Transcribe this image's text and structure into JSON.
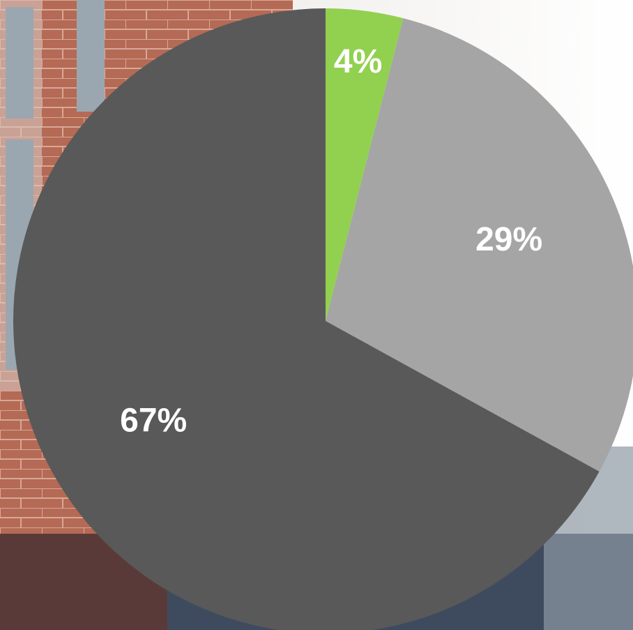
{
  "chart_data": {
    "type": "pie",
    "values": [
      4,
      29,
      67
    ],
    "value_labels": [
      "4%",
      "29%",
      "67%"
    ],
    "colors": [
      "#92d050",
      "#a5a5a5",
      "#595959"
    ]
  }
}
